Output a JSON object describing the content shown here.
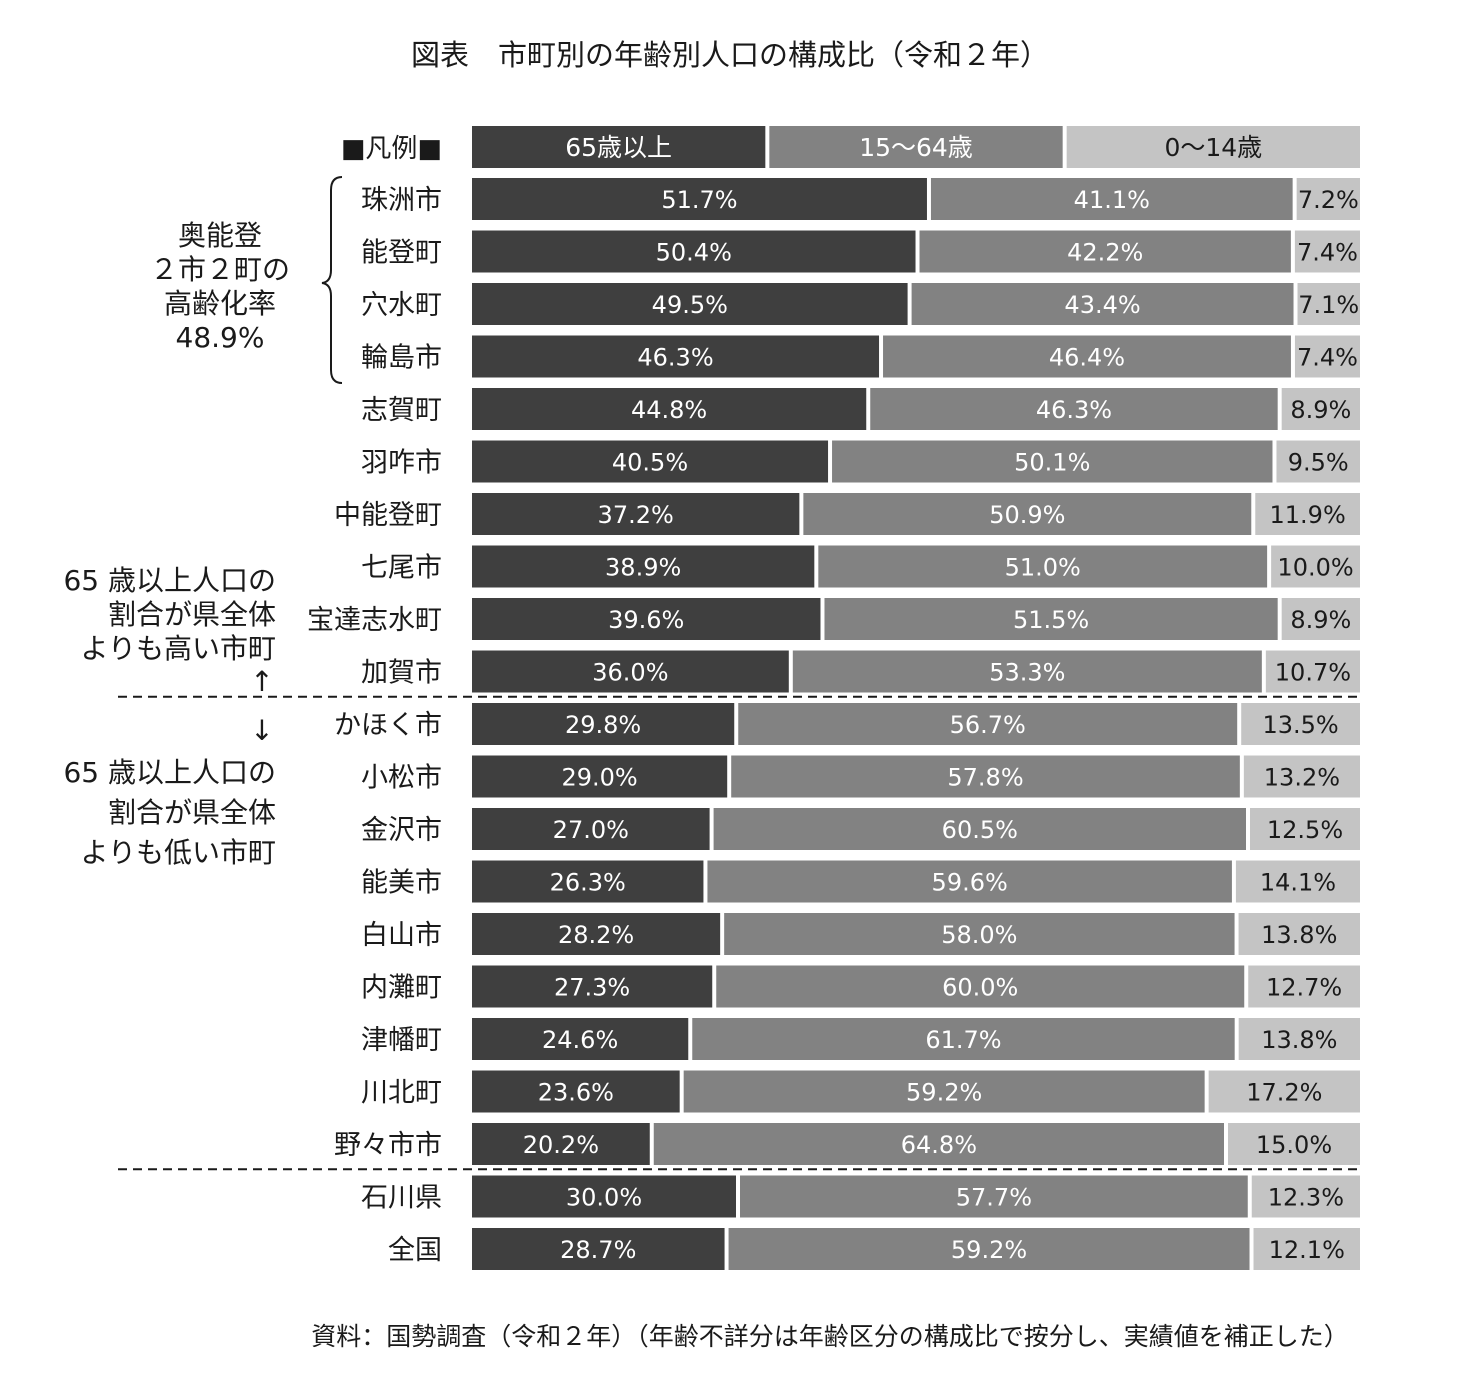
{
  "chart_data": {
    "type": "bar",
    "orientation": "horizontal",
    "stacked": true,
    "title": "図表　市町別の年齢別人口の構成比（令和２年）",
    "legend": {
      "label": "■凡例■",
      "placement": "top"
    },
    "series": [
      {
        "name": "65歳以上",
        "color": "#3f3f3f",
        "label_color": "#ffffff",
        "values": [
          51.7,
          50.4,
          49.5,
          46.3,
          44.8,
          40.5,
          37.2,
          38.9,
          39.6,
          36.0,
          29.8,
          29.0,
          27.0,
          26.3,
          28.2,
          27.3,
          24.6,
          23.6,
          20.2,
          30.0,
          28.7
        ],
        "labels": [
          "51.7%",
          "50.4%",
          "49.5%",
          "46.3%",
          "44.8%",
          "40.5%",
          "37.2%",
          "38.9%",
          "39.6%",
          "36.0%",
          "29.8%",
          "29.0%",
          "27.0%",
          "26.3%",
          "28.2%",
          "27.3%",
          "24.6%",
          "23.6%",
          "20.2%",
          "30.0%",
          "28.7%"
        ]
      },
      {
        "name": "15～64歳",
        "color": "#828282",
        "label_color": "#ffffff",
        "values": [
          41.1,
          42.2,
          43.4,
          46.4,
          46.3,
          50.1,
          50.9,
          51.0,
          51.5,
          53.3,
          56.7,
          57.8,
          60.5,
          59.6,
          58.0,
          60.0,
          61.7,
          59.2,
          64.8,
          57.7,
          59.2
        ],
        "labels": [
          "41.1%",
          "42.2%",
          "43.4%",
          "46.4%",
          "46.3%",
          "50.1%",
          "50.9%",
          "51.0%",
          "51.5%",
          "53.3%",
          "56.7%",
          "57.8%",
          "60.5%",
          "59.6%",
          "58.0%",
          "60.0%",
          "61.7%",
          "59.2%",
          "64.8%",
          "57.7%",
          "59.2%"
        ]
      },
      {
        "name": "0～14歳",
        "color": "#c4c4c4",
        "label_color": "#1a1a1a",
        "values": [
          7.2,
          7.4,
          7.1,
          7.4,
          8.9,
          9.5,
          11.9,
          10.0,
          8.9,
          10.7,
          13.5,
          13.2,
          12.5,
          14.1,
          13.8,
          12.7,
          13.8,
          17.2,
          15.0,
          12.3,
          12.1
        ],
        "labels": [
          "7.2%",
          "7.4%",
          "7.1%",
          "7.4%",
          "8.9%",
          "9.5%",
          "11.9%",
          "10.0%",
          "8.9%",
          "10.7%",
          "13.5%",
          "13.2%",
          "12.5%",
          "14.1%",
          "13.8%",
          "12.7%",
          "13.8%",
          "17.2%",
          "15.0%",
          "12.3%",
          "12.1%"
        ]
      }
    ],
    "categories": [
      "珠洲市",
      "能登町",
      "穴水町",
      "輪島市",
      "志賀町",
      "羽咋市",
      "中能登町",
      "七尾市",
      "宝達志水町",
      "加賀市",
      "かほく市",
      "小松市",
      "金沢市",
      "能美市",
      "白山市",
      "内灘町",
      "津幡町",
      "川北町",
      "野々市市",
      "石川県",
      "全国"
    ],
    "xlim": [
      0,
      100
    ],
    "grid": false,
    "annotations": {
      "okunoto": {
        "lines": [
          "奥能登",
          "２市２町の",
          "高齢化率",
          "48.9%"
        ],
        "bracket_first": 0,
        "bracket_last": 3
      },
      "higher": {
        "lines": [
          "65 歳以上人口の",
          "割合が県全体",
          "よりも高い市町"
        ],
        "arrow": "↑"
      },
      "lower": {
        "arrow": "↓",
        "lines": [
          "65 歳以上人口の",
          "割合が県全体",
          "よりも低い市町"
        ]
      },
      "dividers_after": [
        9,
        18
      ]
    },
    "source": "資料：国勢調査（令和２年）（年齢不詳分は年齢区分の構成比で按分し、実績値を補正した）"
  }
}
